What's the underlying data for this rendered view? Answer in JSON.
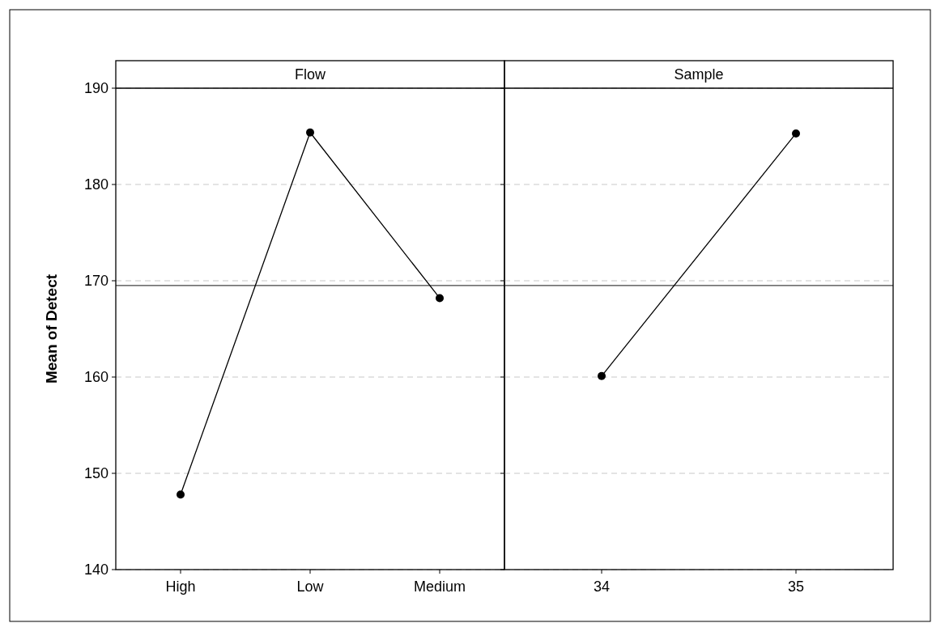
{
  "chart_data": [
    {
      "type": "line",
      "title": "Flow",
      "ylabel": "Mean of Detect",
      "categories": [
        "High",
        "Low",
        "Medium"
      ],
      "series": [
        {
          "color": "#000000",
          "values": [
            147.8,
            185.4,
            168.2
          ]
        }
      ],
      "ylim": [
        140,
        190
      ],
      "yticks": [
        140,
        150,
        160,
        170,
        180,
        190
      ],
      "grid": "y",
      "marker": "circle",
      "line_style": "solid",
      "ref_lines": [
        {
          "axis": "y",
          "value": 169.5,
          "color": "#404040"
        }
      ]
    },
    {
      "type": "line",
      "title": "Sample",
      "categories": [
        "34",
        "35"
      ],
      "series": [
        {
          "color": "#000000",
          "values": [
            160.1,
            185.3
          ]
        }
      ],
      "ylim": [
        140,
        190
      ],
      "yticks": [
        140,
        150,
        160,
        170,
        180,
        190
      ],
      "grid": "y",
      "marker": "circle",
      "line_style": "solid",
      "tick_labels": "x",
      "ref_lines": [
        {
          "axis": "y",
          "value": 169.5,
          "color": "#404040"
        }
      ]
    }
  ]
}
